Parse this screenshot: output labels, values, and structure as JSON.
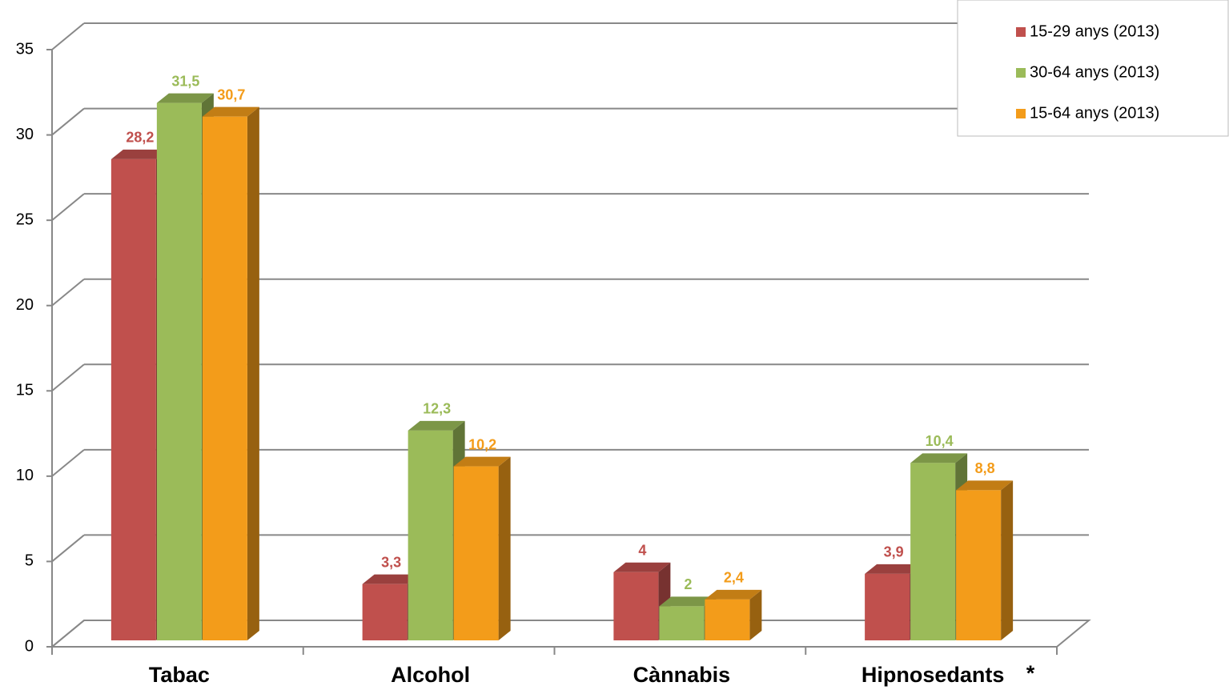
{
  "chart_data": {
    "type": "bar3d",
    "categories": [
      "Tabac",
      "Alcohol",
      "Cànnabis",
      "Hipnosedants"
    ],
    "annotation": "*",
    "series": [
      {
        "name": "15-29 anys (2013)",
        "color": "#c0504d",
        "values": [
          28.2,
          3.3,
          4,
          3.9
        ],
        "value_labels": [
          "28,2",
          "3,3",
          "4",
          "3,9"
        ]
      },
      {
        "name": "30-64 anys (2013)",
        "color": "#9bbb59",
        "values": [
          31.5,
          12.3,
          2,
          10.4
        ],
        "value_labels": [
          "31,5",
          "12,3",
          "2",
          "10,4"
        ]
      },
      {
        "name": "15-64 anys (2013)",
        "color": "#f39c1a",
        "values": [
          30.7,
          10.2,
          2.4,
          8.8
        ],
        "value_labels": [
          "30,7",
          "10,2",
          "2,4",
          "8,8"
        ]
      }
    ],
    "ylim": [
      0,
      35
    ],
    "yticks": [
      0,
      5,
      10,
      15,
      20,
      25,
      30,
      35
    ],
    "grid": true,
    "legend": "top-right"
  }
}
